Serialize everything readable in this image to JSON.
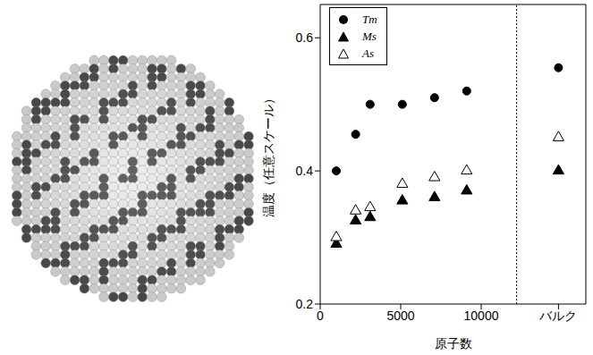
{
  "chart_data": {
    "type": "scatter",
    "x_label": "原子数",
    "y_label": "温度（任意スケール）",
    "x": [
      1000,
      2200,
      3100,
      5100,
      7100,
      9100,
      14800
    ],
    "series": [
      {
        "name": "Tm",
        "color": "#000000",
        "marker": "circle",
        "values": [
          0.4,
          0.455,
          0.5,
          0.5,
          0.51,
          0.52,
          0.555
        ]
      },
      {
        "name": "Ms",
        "color": "#000000",
        "marker": "triangle",
        "values": [
          0.29,
          0.325,
          0.33,
          0.355,
          0.36,
          0.37,
          0.4
        ]
      },
      {
        "name": "As",
        "color": "#000000",
        "marker": "open_triangle",
        "values": [
          0.3,
          0.34,
          0.345,
          0.38,
          0.39,
          0.4,
          0.45
        ]
      }
    ],
    "xlim": [
      0,
      16500
    ],
    "xticks": [
      0,
      5000,
      10000,
      {
        "value": 14800,
        "label": "バルク"
      }
    ],
    "ylim": [
      0.2,
      0.65
    ],
    "yticks": [
      0.2,
      0.4,
      0.6
    ],
    "divider": 12200,
    "grid": false,
    "legend": "top-left"
  }
}
